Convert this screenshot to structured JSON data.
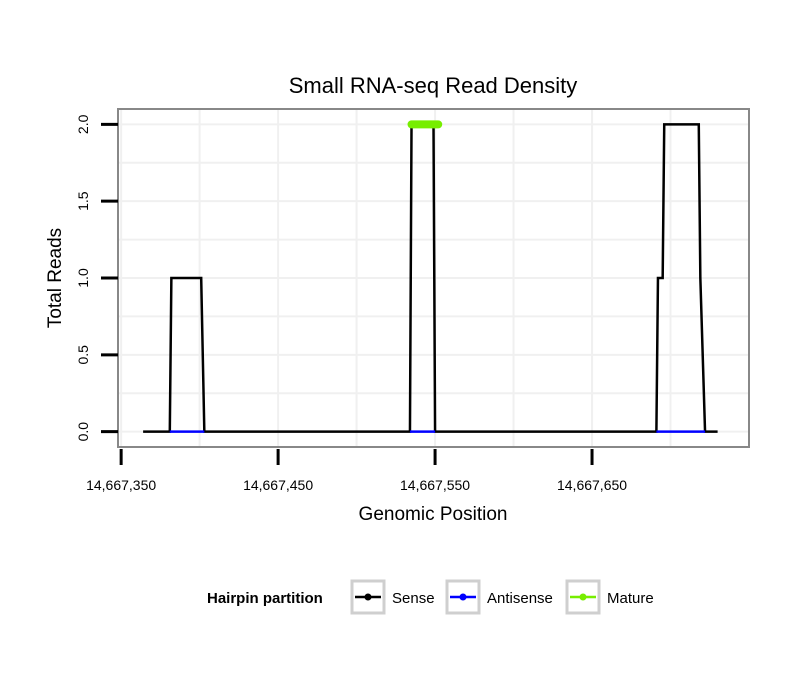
{
  "chart_data": {
    "type": "line",
    "title": "Small RNA-seq Read Density",
    "xlabel": "Genomic Position",
    "ylabel": "Total Reads",
    "xlim": [
      14667348,
      14667750
    ],
    "ylim": [
      -0.1,
      2.1
    ],
    "x_ticks": [
      14667350,
      14667450,
      14667550,
      14667650
    ],
    "x_tick_labels": [
      "14,667,350",
      "14,667,450",
      "14,667,550",
      "14,667,650"
    ],
    "y_ticks": [
      0,
      0.5,
      1,
      1.5,
      2
    ],
    "y_tick_labels": [
      "0.0",
      "0.5",
      "1.0",
      "1.5",
      "2.0"
    ],
    "grid": true,
    "legend": {
      "title": "Hairpin partition",
      "position": "bottom",
      "entries": [
        {
          "name": "Sense",
          "color": "#000000"
        },
        {
          "name": "Antisense",
          "color": "#0000ff"
        },
        {
          "name": "Mature",
          "color": "#77ee00"
        }
      ]
    },
    "series": [
      {
        "name": "Sense",
        "color": "#000000",
        "x": [
          14667364,
          14667381,
          14667382,
          14667401,
          14667403,
          14667534,
          14667535,
          14667549,
          14667550,
          14667691,
          14667692,
          14667695,
          14667696,
          14667718,
          14667719,
          14667722,
          14667730
        ],
        "y": [
          0,
          0,
          1,
          1,
          0,
          0,
          2,
          2,
          0,
          0,
          1,
          1,
          2,
          2,
          1,
          0,
          0
        ]
      },
      {
        "name": "Antisense",
        "color": "#0000ff",
        "x": [
          14667381,
          14667403,
          14667534,
          14667550,
          14667691,
          14667722
        ],
        "y": [
          0,
          0,
          0,
          0,
          0,
          0
        ],
        "segments": [
          [
            0,
            1
          ],
          [
            2,
            3
          ],
          [
            4,
            5
          ]
        ]
      },
      {
        "name": "Mature",
        "color": "#77ee00",
        "x": [
          14667535,
          14667552
        ],
        "y": [
          2,
          2
        ]
      }
    ]
  }
}
